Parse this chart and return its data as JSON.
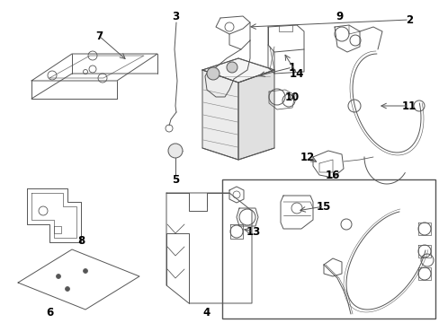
{
  "bg_color": "#ffffff",
  "line_color": "#555555",
  "text_color": "#000000",
  "fig_width": 4.89,
  "fig_height": 3.6,
  "dpi": 100
}
